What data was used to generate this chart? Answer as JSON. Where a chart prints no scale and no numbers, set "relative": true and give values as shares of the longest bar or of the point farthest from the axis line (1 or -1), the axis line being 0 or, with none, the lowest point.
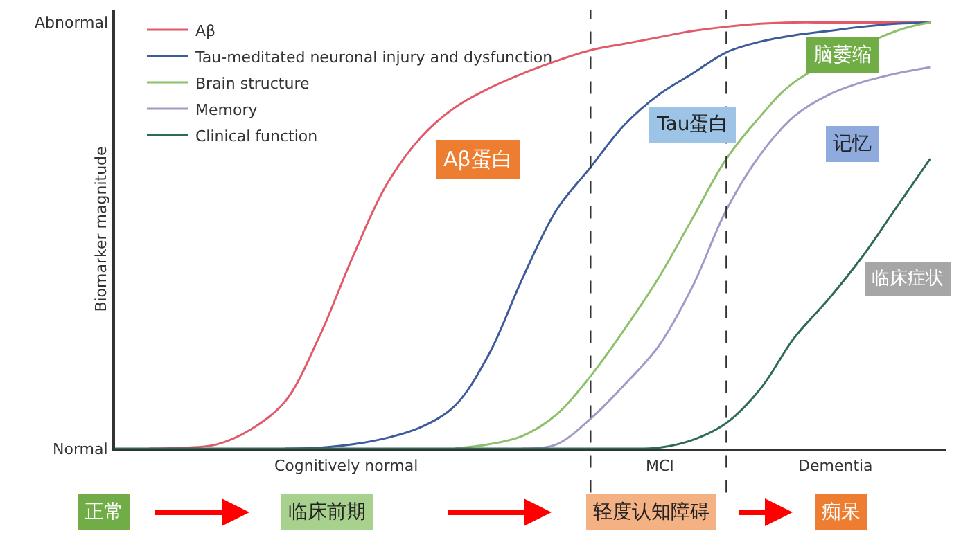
{
  "chart_data": {
    "type": "line",
    "ylabel": "Biomarker magnitude",
    "relative": true,
    "categories": [
      null,
      null,
      null,
      null,
      null,
      null,
      null,
      null,
      null,
      null,
      null,
      null,
      null,
      null,
      null,
      null,
      null,
      null,
      null,
      null,
      null,
      null,
      null,
      null,
      null
    ],
    "legend": "top left",
    "marker": "none",
    "line_style": "solid",
    "series": [
      {
        "name": "Aβ",
        "color": "#e05a6a",
        "values": [
          null,
          0,
          0.002,
          0.01,
          0.045,
          0.11,
          0.26,
          0.45,
          0.62,
          0.73,
          0.8,
          0.845,
          0.88,
          0.91,
          0.935,
          0.95,
          0.965,
          0.98,
          0.99,
          0.997,
          1,
          1,
          1,
          1,
          1
        ]
      },
      {
        "name": "Tau-meditated neuronal injury and dysfunction",
        "color": "#3d5a9a",
        "values": [
          null,
          null,
          null,
          null,
          null,
          0,
          0.002,
          0.01,
          0.025,
          0.05,
          0.1,
          0.22,
          0.4,
          0.56,
          0.66,
          0.76,
          0.83,
          0.88,
          0.93,
          0.955,
          0.97,
          0.98,
          0.99,
          0.997,
          1
        ]
      },
      {
        "name": "Brain structure",
        "color": "#8cc06a",
        "values": [
          null,
          null,
          null,
          null,
          null,
          null,
          null,
          null,
          null,
          null,
          0,
          0.01,
          0.03,
          0.08,
          0.17,
          0.28,
          0.4,
          0.54,
          0.68,
          0.78,
          0.86,
          null,
          null,
          0.98,
          1
        ]
      },
      {
        "name": "Memory",
        "color": "#a09ac8",
        "values": [
          null,
          null,
          null,
          null,
          null,
          null,
          null,
          null,
          null,
          null,
          null,
          null,
          0,
          0.01,
          0.07,
          0.15,
          0.24,
          0.38,
          0.56,
          0.69,
          0.78,
          0.83,
          0.86,
          0.88,
          0.895
        ]
      },
      {
        "name": "Clinical function",
        "color": "#2e6a5a",
        "values": [
          0,
          0,
          0,
          0,
          0,
          0,
          0,
          0,
          0,
          0,
          0,
          0,
          0,
          0,
          0,
          0,
          0.002,
          0.02,
          0.06,
          0.14,
          0.26,
          0.35,
          0.45,
          0.565,
          0.68
        ]
      }
    ],
    "annotations": [
      "Normal",
      "Abnormal",
      "Cognitively normal",
      "MCI",
      "Dementia",
      "Aβ蛋白",
      "Tau蛋白",
      "脑萎缩",
      "记忆",
      "临床症状",
      "正常",
      "临床前期",
      "轻度认知障碍",
      "痴呆"
    ]
  }
}
